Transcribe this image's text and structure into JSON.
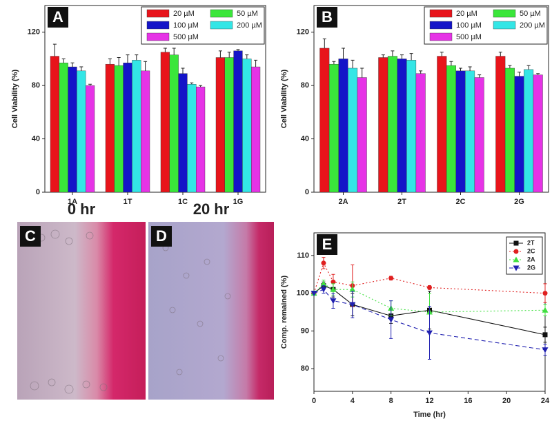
{
  "chart_data": [
    {
      "type": "bar",
      "panel": "A",
      "ylabel": "Cell Viability (%)",
      "categories": [
        "1A",
        "1T",
        "1C",
        "1G"
      ],
      "series": [
        {
          "name": "20 µM",
          "color": "#e8141b",
          "values": [
            102,
            96,
            105,
            101
          ],
          "errors": [
            9,
            4,
            3,
            5
          ]
        },
        {
          "name": "50 µM",
          "color": "#3ae63a",
          "values": [
            97,
            95,
            103,
            101
          ],
          "errors": [
            3,
            6,
            5,
            4
          ]
        },
        {
          "name": "100 µM",
          "color": "#1414c8",
          "values": [
            94,
            97,
            89,
            106
          ],
          "errors": [
            3,
            6,
            4,
            1
          ]
        },
        {
          "name": "200 µM",
          "color": "#33e6e6",
          "values": [
            91,
            99,
            81,
            100
          ],
          "errors": [
            3,
            4,
            1,
            3
          ]
        },
        {
          "name": "500 µM",
          "color": "#e633e6",
          "values": [
            80,
            91,
            79,
            94
          ],
          "errors": [
            1,
            7,
            1,
            5
          ]
        }
      ],
      "ylim": [
        0,
        140
      ],
      "yticks": [
        0,
        40,
        80,
        120
      ],
      "legend": "top-right"
    },
    {
      "type": "bar",
      "panel": "B",
      "ylabel": "Cell Viability (%)",
      "categories": [
        "2A",
        "2T",
        "2C",
        "2G"
      ],
      "series": [
        {
          "name": "20 µM",
          "color": "#e8141b",
          "values": [
            108,
            101,
            102,
            102
          ],
          "errors": [
            7,
            2,
            3,
            3
          ]
        },
        {
          "name": "50 µM",
          "color": "#3ae63a",
          "values": [
            96,
            102,
            95,
            93
          ],
          "errors": [
            2,
            4,
            3,
            2
          ]
        },
        {
          "name": "100 µM",
          "color": "#1414c8",
          "values": [
            100,
            100,
            91,
            87
          ],
          "errors": [
            8,
            3,
            2,
            3
          ]
        },
        {
          "name": "200 µM",
          "color": "#33e6e6",
          "values": [
            93,
            99,
            91,
            92
          ],
          "errors": [
            6,
            5,
            3,
            3
          ]
        },
        {
          "name": "500 µM",
          "color": "#e633e6",
          "values": [
            86,
            89,
            86,
            88
          ],
          "errors": [
            7,
            2,
            2,
            1
          ]
        }
      ],
      "ylim": [
        0,
        140
      ],
      "yticks": [
        0,
        40,
        80,
        120
      ],
      "legend": "top-right"
    },
    {
      "type": "line",
      "panel": "E",
      "xlabel": "Time (hr)",
      "ylabel": "Comp. remained (%)",
      "x": [
        0,
        1,
        2,
        4,
        8,
        12,
        24
      ],
      "series": [
        {
          "name": "2T",
          "color": "#111111",
          "marker": "square",
          "linestyle": "solid",
          "values": [
            100,
            102,
            101,
            97,
            94,
            95.5,
            89
          ],
          "errors": [
            0,
            1,
            2,
            3,
            2,
            5,
            2
          ]
        },
        {
          "name": "2C",
          "color": "#e02020",
          "marker": "circle",
          "linestyle": "dotted",
          "values": [
            100,
            108,
            103,
            102,
            104,
            101.5,
            100
          ],
          "errors": [
            0,
            1.5,
            2,
            5.5,
            0.5,
            0.5,
            2.5
          ]
        },
        {
          "name": "2A",
          "color": "#40e040",
          "marker": "triangle-up",
          "linestyle": "dotted",
          "values": [
            100,
            102.5,
            101,
            101,
            96,
            95,
            95.5
          ],
          "errors": [
            0,
            1,
            1.5,
            2,
            2,
            5,
            1.5
          ]
        },
        {
          "name": "2G",
          "color": "#2020b0",
          "marker": "triangle-down",
          "linestyle": "dashed",
          "values": [
            100,
            101,
            98,
            97,
            93,
            89.5,
            85
          ],
          "errors": [
            0,
            1,
            2,
            3.5,
            5,
            7,
            1.5
          ]
        }
      ],
      "xlim": [
        0,
        24
      ],
      "xticks": [
        0,
        4,
        8,
        12,
        16,
        20,
        24
      ],
      "ylim": [
        74,
        116
      ],
      "yticks": [
        80,
        90,
        100,
        110
      ],
      "legend": "top-right"
    }
  ],
  "images": [
    {
      "panel": "C",
      "caption": "0 hr"
    },
    {
      "panel": "D",
      "caption": "20 hr"
    }
  ]
}
